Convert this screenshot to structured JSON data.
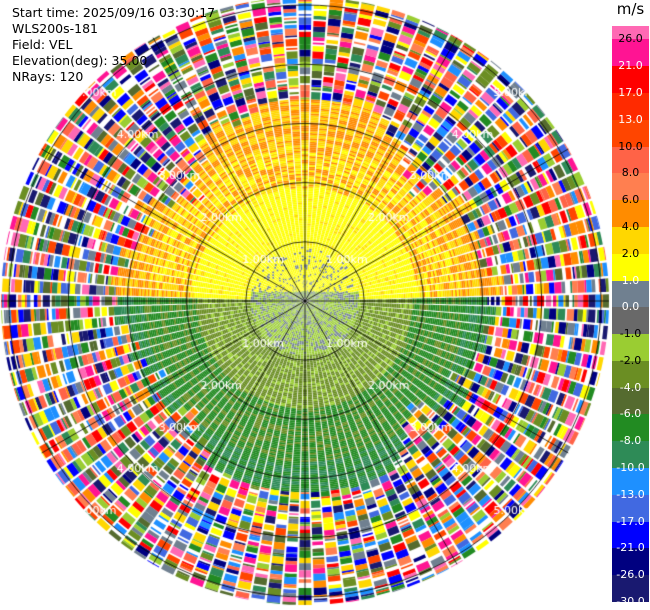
{
  "info": {
    "start_time": "Start time: 2025/09/16 03:30:17",
    "station": "WLS200s-181",
    "field": "Field: VEL",
    "elevation": "Elevation(deg): 35.00",
    "nrays": "NRays: 120"
  },
  "range_rings": {
    "labels": [
      "1.00km",
      "2.00km",
      "3.00km",
      "4.00km",
      "5.00km"
    ],
    "values_km": [
      1,
      2,
      3,
      4,
      5
    ]
  },
  "colorbar": {
    "unit": "m/s",
    "ticks": [
      "26.0",
      "21.0",
      "17.0",
      "13.0",
      "10.0",
      "8.0",
      "6.0",
      "4.0",
      "2.0",
      "1.0",
      "0.0",
      "-1.0",
      "-2.0",
      "-4.0",
      "-6.0",
      "-8.0",
      "-10.0",
      "-13.0",
      "-17.0",
      "-21.0",
      "-26.0",
      "-30.0"
    ],
    "colors": [
      "#ff1493",
      "#ff0000",
      "#ff2a00",
      "#ff4500",
      "#ff6347",
      "#ff7f50",
      "#ff8c00",
      "#ffd700",
      "#ffff00",
      "#708090",
      "#696969",
      "#9acd32",
      "#6b8e23",
      "#556b2f",
      "#228b22",
      "#2e8b57",
      "#1e90ff",
      "#4169e1",
      "#0000ff",
      "#000080",
      "#191970"
    ],
    "top_color": "#ff69b4"
  }
}
